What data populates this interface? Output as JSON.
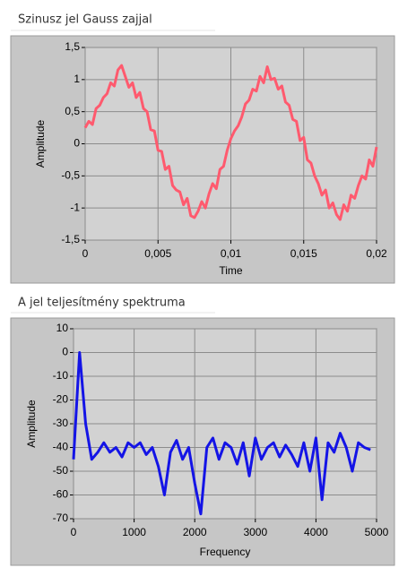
{
  "chart_data": [
    {
      "type": "line",
      "title": "Szinusz jel Gauss zajjal",
      "xlabel": "Time",
      "ylabel": "Amplitude",
      "color": "#ff5a6e",
      "grid": true,
      "xlim": [
        0,
        0.02
      ],
      "ylim": [
        -1.5,
        1.5
      ],
      "xticks": [
        0,
        {
          "value": 0.005,
          "label": "0,005"
        },
        {
          "value": 0.01,
          "label": "0,01"
        },
        {
          "value": 0.015,
          "label": "0,015"
        },
        {
          "value": 0.02,
          "label": "0,02"
        }
      ],
      "yticks": [
        {
          "value": 1.5,
          "label": "1,5"
        },
        1,
        {
          "value": 0.5,
          "label": "0,5"
        },
        0,
        {
          "value": -0.5,
          "label": "-0,5"
        },
        -1,
        {
          "value": -1.5,
          "label": "-1,5"
        }
      ],
      "x": [
        0,
        0.00025,
        0.0005,
        0.00075,
        0.001,
        0.00125,
        0.0015,
        0.00175,
        0.002,
        0.00225,
        0.0025,
        0.00275,
        0.003,
        0.00325,
        0.0035,
        0.00375,
        0.004,
        0.00425,
        0.0045,
        0.00475,
        0.005,
        0.00525,
        0.0055,
        0.00575,
        0.006,
        0.00625,
        0.0065,
        0.00675,
        0.007,
        0.00725,
        0.0075,
        0.00775,
        0.008,
        0.00825,
        0.0085,
        0.00875,
        0.009,
        0.00925,
        0.0095,
        0.00975,
        0.01,
        0.01025,
        0.0105,
        0.01075,
        0.011,
        0.01125,
        0.0115,
        0.01175,
        0.012,
        0.01225,
        0.0125,
        0.01275,
        0.013,
        0.01325,
        0.0135,
        0.01375,
        0.014,
        0.01425,
        0.0145,
        0.01475,
        0.015,
        0.01525,
        0.0155,
        0.01575,
        0.016,
        0.01625,
        0.0165,
        0.01675,
        0.017,
        0.01725,
        0.0175,
        0.01775,
        0.018,
        0.01825,
        0.0185,
        0.01875,
        0.019,
        0.01925,
        0.0195,
        0.01975,
        0.02
      ],
      "values": [
        0.25,
        0.35,
        0.3,
        0.55,
        0.6,
        0.72,
        0.78,
        0.95,
        0.9,
        1.15,
        1.22,
        1.05,
        0.88,
        0.95,
        0.72,
        0.8,
        0.55,
        0.5,
        0.22,
        0.2,
        -0.1,
        -0.12,
        -0.4,
        -0.35,
        -0.65,
        -0.72,
        -0.75,
        -0.95,
        -0.85,
        -1.12,
        -1.15,
        -1.05,
        -0.9,
        -1.0,
        -0.78,
        -0.62,
        -0.7,
        -0.4,
        -0.35,
        -0.1,
        0.08,
        0.2,
        0.28,
        0.42,
        0.62,
        0.68,
        0.85,
        0.82,
        1.05,
        0.95,
        1.2,
        1.0,
        1.02,
        0.85,
        0.9,
        0.65,
        0.6,
        0.38,
        0.35,
        0.05,
        0.1,
        -0.25,
        -0.3,
        -0.5,
        -0.62,
        -0.8,
        -0.72,
        -1.0,
        -0.92,
        -1.1,
        -1.18,
        -0.95,
        -1.05,
        -0.8,
        -0.85,
        -0.65,
        -0.5,
        -0.55,
        -0.25,
        -0.35,
        -0.05
      ]
    },
    {
      "type": "line",
      "title": "A jel teljesítmény spektruma",
      "xlabel": "Frequency",
      "ylabel": "Amplitude",
      "color": "#1414e6",
      "grid": true,
      "xlim": [
        0,
        5000
      ],
      "ylim": [
        -70,
        10
      ],
      "xticks": [
        0,
        1000,
        2000,
        3000,
        4000,
        5000
      ],
      "yticks": [
        10,
        0,
        -10,
        -20,
        -30,
        -40,
        -50,
        -60,
        -70
      ],
      "x": [
        0,
        100,
        200,
        300,
        400,
        500,
        600,
        700,
        800,
        900,
        1000,
        1100,
        1200,
        1300,
        1400,
        1500,
        1600,
        1700,
        1800,
        1900,
        2000,
        2100,
        2200,
        2300,
        2400,
        2500,
        2600,
        2700,
        2800,
        2900,
        3000,
        3100,
        3200,
        3300,
        3400,
        3500,
        3600,
        3700,
        3800,
        3900,
        4000,
        4100,
        4200,
        4300,
        4400,
        4500,
        4600,
        4700,
        4800,
        4900
      ],
      "values": [
        -45,
        0,
        -30,
        -45,
        -42,
        -38,
        -42,
        -40,
        -44,
        -38,
        -40,
        -38,
        -43,
        -40,
        -48,
        -60,
        -42,
        -37,
        -45,
        -40,
        -55,
        -68,
        -40,
        -36,
        -45,
        -38,
        -40,
        -47,
        -38,
        -52,
        -36,
        -45,
        -40,
        -38,
        -44,
        -39,
        -43,
        -48,
        -38,
        -50,
        -36,
        -62,
        -38,
        -42,
        -34,
        -40,
        -50,
        -38,
        -40,
        -41
      ]
    }
  ]
}
